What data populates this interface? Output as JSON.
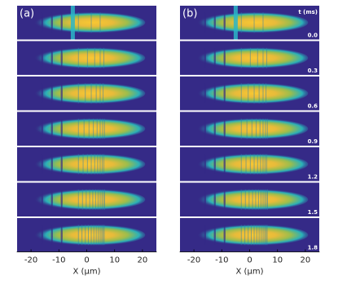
{
  "chart_data": [
    {
      "type": "image",
      "panel_label": "(a)",
      "xlim": [
        -25,
        25
      ],
      "xticks": [
        -20,
        -10,
        0,
        10,
        20
      ],
      "xlabel": "X (μm)"
    },
    {
      "type": "image",
      "panel_label": "(b)",
      "time_label": "t (ms)",
      "values": [
        0,
        0.3,
        0.6,
        0.9,
        1.2,
        1.5,
        1.8
      ],
      "value_labels": [
        "0.0",
        "0.3",
        "0.6",
        "0.9",
        "1.2",
        "1.5",
        "1.8"
      ],
      "xlim": [
        -25,
        25
      ],
      "xticks": [
        -20,
        -10,
        0,
        10,
        20
      ],
      "xlabel": "X (μm)"
    }
  ]
}
